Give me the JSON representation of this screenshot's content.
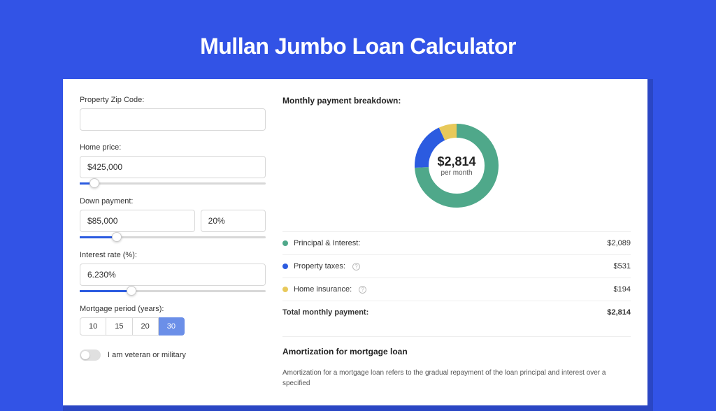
{
  "page": {
    "title": "Mullan Jumbo Loan Calculator",
    "background_color": "#3253e6",
    "shadow_color": "#2a46c4",
    "card_bg": "#ffffff"
  },
  "form": {
    "zip": {
      "label": "Property Zip Code:",
      "value": ""
    },
    "home_price": {
      "label": "Home price:",
      "value": "$425,000",
      "slider_pct": 8
    },
    "down_payment": {
      "label": "Down payment:",
      "value": "$85,000",
      "pct_value": "20%",
      "slider_pct": 20
    },
    "interest_rate": {
      "label": "Interest rate (%):",
      "value": "6.230%",
      "slider_pct": 28
    },
    "mortgage_period": {
      "label": "Mortgage period (years):",
      "options": [
        "10",
        "15",
        "20",
        "30"
      ],
      "active_index": 3
    },
    "veteran": {
      "label": "I am veteran or military",
      "checked": false
    }
  },
  "breakdown": {
    "title": "Monthly payment breakdown:",
    "center_amount": "$2,814",
    "center_sub": "per month",
    "donut": {
      "segments": [
        {
          "color": "#4fa88a",
          "pct": 74.2
        },
        {
          "color": "#2b5be0",
          "pct": 18.9
        },
        {
          "color": "#e8c95a",
          "pct": 6.9
        }
      ],
      "stroke_width": 20
    },
    "items": [
      {
        "label": "Principal & Interest:",
        "value": "$2,089",
        "color": "#4fa88a",
        "info": false
      },
      {
        "label": "Property taxes:",
        "value": "$531",
        "color": "#2b5be0",
        "info": true
      },
      {
        "label": "Home insurance:",
        "value": "$194",
        "color": "#e8c95a",
        "info": true
      }
    ],
    "total": {
      "label": "Total monthly payment:",
      "value": "$2,814"
    }
  },
  "amortization": {
    "title": "Amortization for mortgage loan",
    "text": "Amortization for a mortgage loan refers to the gradual repayment of the loan principal and interest over a specified"
  }
}
